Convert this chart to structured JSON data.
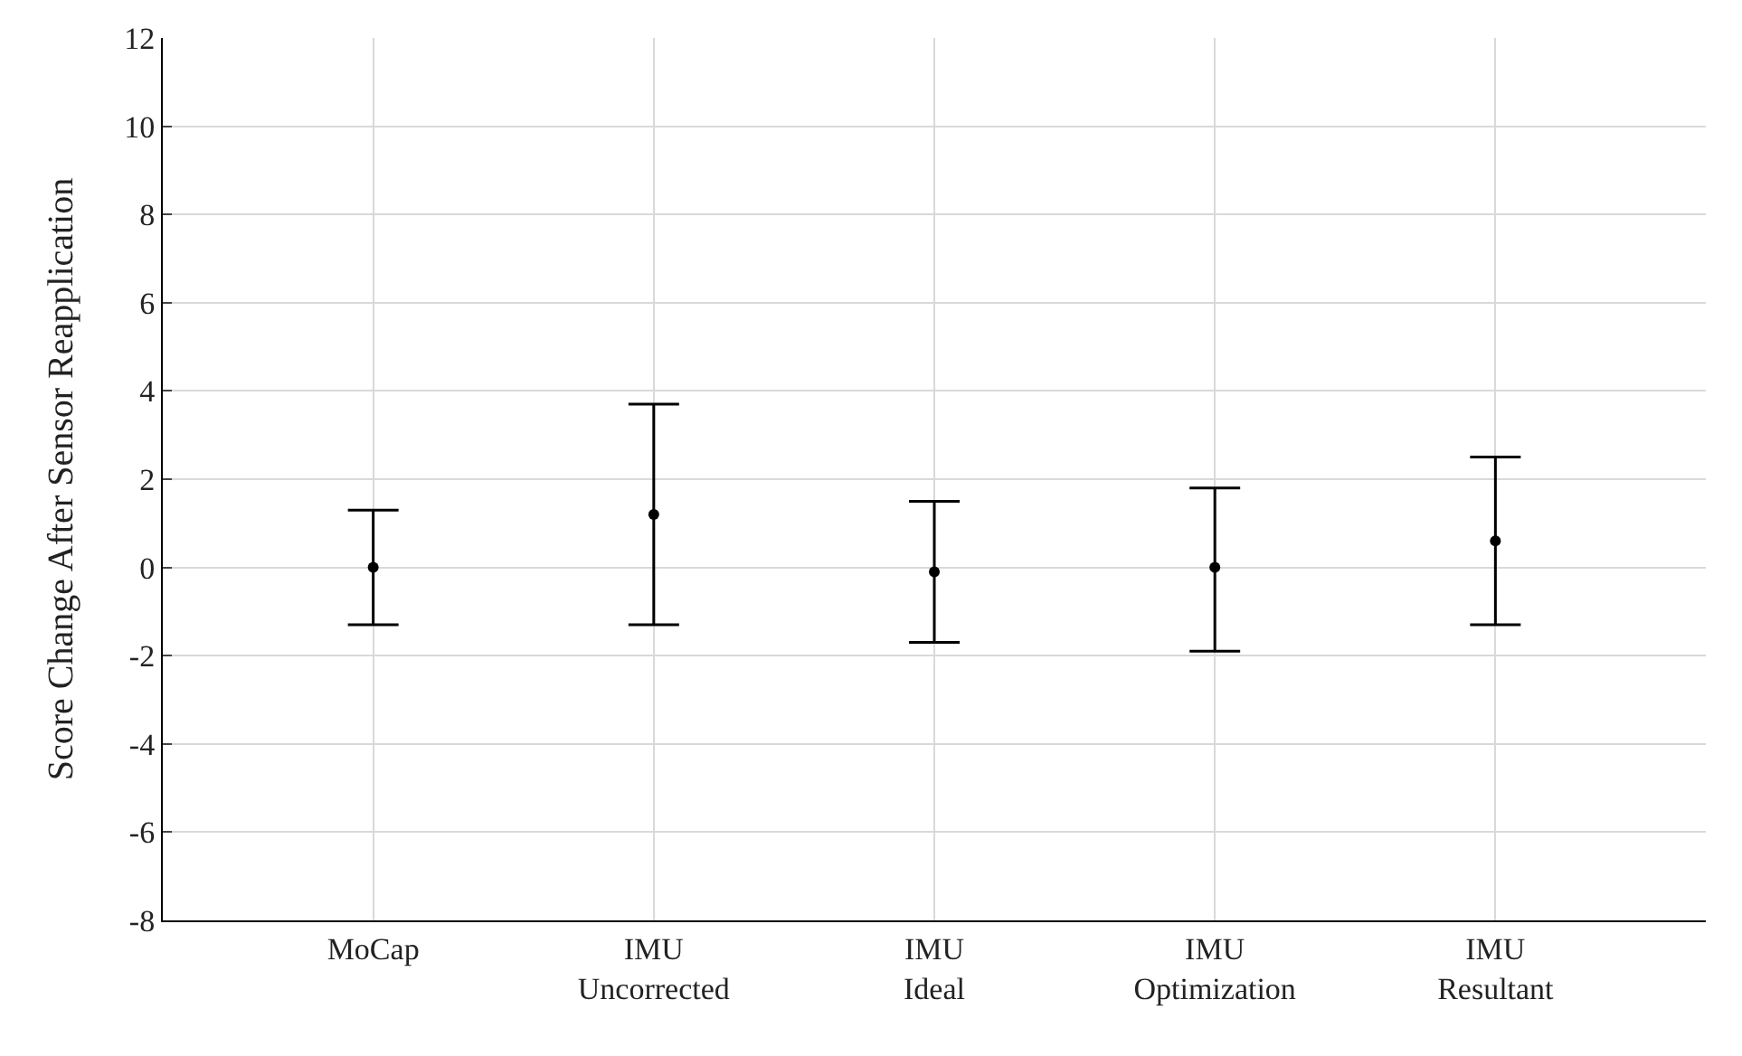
{
  "chart_data": {
    "type": "scatter",
    "ylabel": "Score Change After Sensor Reapplication",
    "categories": [
      "MoCap",
      "IMU\nUncorrected",
      "IMU\nIdeal",
      "IMU\nOptimization",
      "IMU\nResultant"
    ],
    "values": [
      0,
      1.2,
      -0.1,
      0,
      0.6
    ],
    "errors": [
      [
        -1.3,
        1.3
      ],
      [
        -1.3,
        3.7
      ],
      [
        -1.7,
        1.5
      ],
      [
        -1.9,
        1.8
      ],
      [
        -1.3,
        2.5
      ]
    ],
    "color": "#000000",
    "marker": "circle",
    "ylim": [
      -8,
      12
    ],
    "yticks": [
      -8,
      -6,
      -4,
      -2,
      0,
      2,
      4,
      6,
      8,
      10,
      12
    ],
    "grid": true
  }
}
